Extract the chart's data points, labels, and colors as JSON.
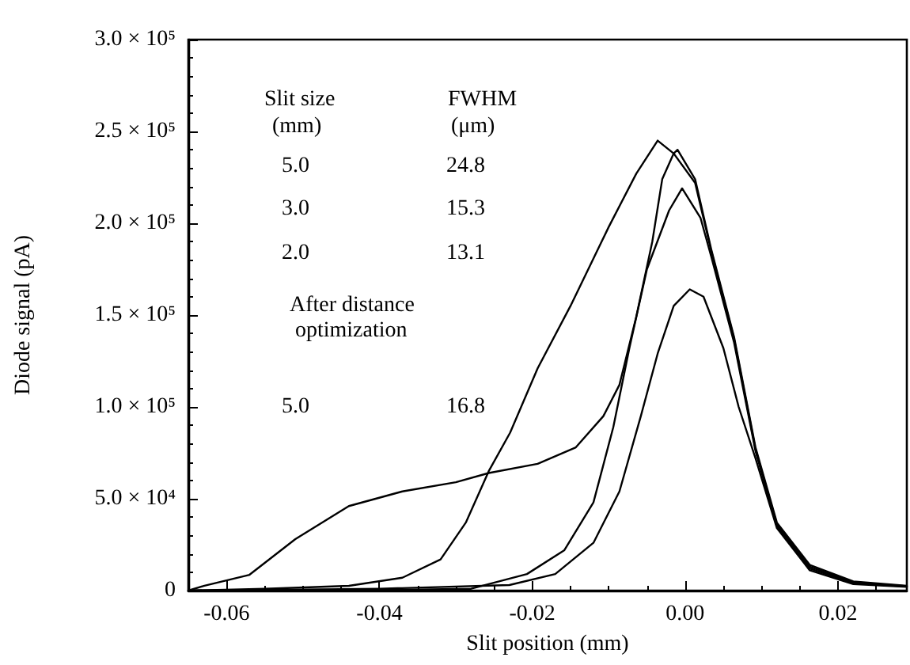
{
  "chart_data": {
    "type": "line",
    "xlabel": "Slit position (mm)",
    "ylabel": "Diode signal (pA)",
    "xlim": [
      -0.065,
      0.029
    ],
    "xticks": [
      -0.06,
      -0.04,
      -0.02,
      {
        "value": 0,
        "label": "0.00"
      },
      0.02
    ],
    "ylim": [
      0,
      300000
    ],
    "yticks": [
      {
        "value": 0,
        "label": "0"
      },
      {
        "value": 50000,
        "label": "5.0 × 10⁴"
      },
      {
        "value": 100000,
        "label": "1.0 × 10⁵"
      },
      {
        "value": 150000,
        "label": "1.5 × 10⁵"
      },
      {
        "value": 200000,
        "label": "2.0 × 10⁵"
      },
      {
        "value": 250000,
        "label": "2.5 × 10⁵"
      },
      {
        "value": 300000,
        "label": "3.0 × 10⁵"
      }
    ],
    "grid": false,
    "marker": "none",
    "line_style": "solid",
    "annotations": [
      "Slit size",
      "(mm)",
      "FWHM",
      "(μm)",
      "5.0",
      "24.8",
      "3.0",
      "15.3",
      "2.0",
      "13.1",
      "After distance optimization",
      "5.0",
      "16.8"
    ],
    "series": [
      {
        "color": "#000000",
        "x": [
          -0.065,
          -0.063,
          -0.057,
          -0.051,
          -0.044,
          -0.037,
          -0.03,
          -0.0257,
          -0.0193,
          -0.0143,
          -0.0107,
          -0.0086,
          -0.0064,
          -0.0043,
          -0.003,
          -0.0015,
          -0.001,
          0.0013,
          0.0034,
          0.0064,
          0.0092,
          0.012,
          0.0163,
          0.022,
          0.029
        ],
        "values": [
          0,
          2500,
          8600,
          28000,
          46000,
          54000,
          59000,
          64000,
          69000,
          78000,
          95000,
          112000,
          149000,
          190000,
          224000,
          238000,
          240000,
          224000,
          186000,
          138000,
          78000,
          37000,
          14000,
          5000,
          2600
        ]
      },
      {
        "color": "#000000",
        "x": [
          -0.065,
          -0.055,
          -0.044,
          -0.037,
          -0.032,
          -0.0287,
          -0.0257,
          -0.0229,
          -0.0193,
          -0.015,
          -0.01,
          -0.0064,
          -0.0036,
          -0.0015,
          0.0013,
          0.0034,
          0.0064,
          0.0092,
          0.012,
          0.0163,
          0.022,
          0.029
        ],
        "values": [
          0,
          1000,
          2600,
          7000,
          17000,
          37000,
          65000,
          86000,
          121000,
          155000,
          198000,
          227000,
          245000,
          238000,
          222000,
          185000,
          137000,
          77000,
          36000,
          13000,
          4500,
          2400
        ]
      },
      {
        "color": "#000000",
        "x": [
          -0.065,
          -0.04,
          -0.028,
          -0.0207,
          -0.0158,
          -0.012,
          -0.0094,
          -0.0073,
          -0.005,
          -0.0021,
          -0.0004,
          0.002,
          0.0034,
          0.0064,
          0.0092,
          0.012,
          0.0163,
          0.022,
          0.029
        ],
        "values": [
          0,
          300,
          1000,
          9000,
          22000,
          48000,
          89000,
          132000,
          175000,
          207000,
          219000,
          203000,
          182000,
          135000,
          76000,
          35000,
          12000,
          4000,
          2200
        ]
      },
      {
        "color": "#000000",
        "x": [
          -0.065,
          -0.04,
          -0.023,
          -0.017,
          -0.012,
          -0.0086,
          -0.0058,
          -0.0036,
          -0.0015,
          0.0006,
          0.0024,
          0.005,
          0.007,
          0.0092,
          0.012,
          0.0163,
          0.022,
          0.029
        ],
        "values": [
          0,
          1000,
          3000,
          9000,
          26000,
          54000,
          95000,
          129000,
          155000,
          164000,
          160000,
          132000,
          100000,
          72000,
          34000,
          11000,
          3500,
          2000
        ]
      }
    ]
  }
}
